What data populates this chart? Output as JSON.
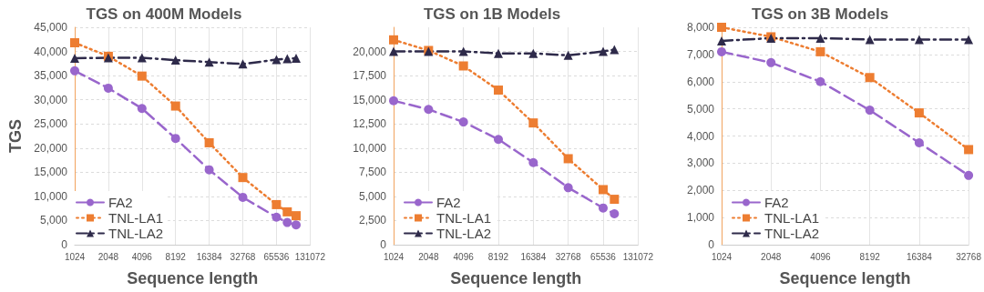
{
  "chart_data": [
    {
      "type": "line",
      "title": "TGS on 400M Models",
      "xlabel": "Sequence length",
      "ylabel": "TGS",
      "log": "x",
      "x": [
        1024,
        2048,
        4096,
        8192,
        16384,
        32768,
        65536,
        81920,
        98304
      ],
      "xlim": [
        1024,
        131072
      ],
      "xticks": [
        1024,
        2048,
        4096,
        8192,
        16384,
        32768,
        65536,
        131072
      ],
      "ylim": [
        0,
        45000
      ],
      "yticks": [
        {
          "value": 0,
          "label": "0"
        },
        {
          "value": 5000,
          "label": "5,000"
        },
        {
          "value": 10000,
          "label": "10,000"
        },
        {
          "value": 15000,
          "label": "15,000"
        },
        {
          "value": 20000,
          "label": "20,000"
        },
        {
          "value": 25000,
          "label": "25,000"
        },
        {
          "value": 30000,
          "label": "30,000"
        },
        {
          "value": 35000,
          "label": "35,000"
        },
        {
          "value": 40000,
          "label": "40,000"
        },
        {
          "value": 45000,
          "label": "45,000"
        }
      ],
      "grid": true,
      "legend": "bottom left",
      "series": [
        {
          "name": "FA2",
          "color": "#9966cc",
          "marker": "circle",
          "line_style": "dashed",
          "values": [
            36000,
            32400,
            28200,
            22000,
            15500,
            9800,
            5700,
            4600,
            4100
          ]
        },
        {
          "name": "TNL-LA1",
          "color": "#ed7d31",
          "marker": "square",
          "line_style": "dotted",
          "values": [
            41800,
            39000,
            34900,
            28700,
            21100,
            13900,
            8300,
            6800,
            6000
          ]
        },
        {
          "name": "TNL-LA2",
          "color": "#2e2a4a",
          "marker": "triangle",
          "line_style": "dashdot",
          "values": [
            38600,
            38700,
            38700,
            38200,
            37800,
            37400,
            38300,
            38500,
            38600
          ]
        }
      ]
    },
    {
      "type": "line",
      "title": "TGS on 1B Models",
      "xlabel": "Sequence length",
      "log": "x",
      "x": [
        1024,
        2048,
        4096,
        8192,
        16384,
        32768,
        65536,
        81920
      ],
      "xlim": [
        1024,
        131072
      ],
      "xticks": [
        1024,
        2048,
        4096,
        8192,
        16384,
        32768,
        65536,
        131072
      ],
      "ylim": [
        0,
        22500
      ],
      "yticks": [
        {
          "value": 0,
          "label": "0"
        },
        {
          "value": 2500,
          "label": "2,500"
        },
        {
          "value": 5000,
          "label": "5,000"
        },
        {
          "value": 7500,
          "label": "7,500"
        },
        {
          "value": 10000,
          "label": "10,000"
        },
        {
          "value": 12500,
          "label": "12,500"
        },
        {
          "value": 15000,
          "label": "15,000"
        },
        {
          "value": 17500,
          "label": "17,500"
        },
        {
          "value": 20000,
          "label": "20,000"
        }
      ],
      "grid": true,
      "legend": "bottom left",
      "series": [
        {
          "name": "FA2",
          "color": "#9966cc",
          "marker": "circle",
          "line_style": "dashed",
          "values": [
            14900,
            14000,
            12700,
            10900,
            8500,
            5900,
            3800,
            3200
          ]
        },
        {
          "name": "TNL-LA1",
          "color": "#ed7d31",
          "marker": "square",
          "line_style": "dotted",
          "values": [
            21200,
            20100,
            18500,
            16000,
            12600,
            8900,
            5700,
            4700
          ]
        },
        {
          "name": "TNL-LA2",
          "color": "#2e2a4a",
          "marker": "triangle",
          "line_style": "dashdot",
          "values": [
            20000,
            20000,
            20000,
            19800,
            19800,
            19600,
            20000,
            20200
          ]
        }
      ]
    },
    {
      "type": "line",
      "title": "TGS on 3B Models",
      "xlabel": "Sequence length",
      "log": "x",
      "x": [
        1024,
        2048,
        4096,
        8192,
        16384,
        32768
      ],
      "xlim": [
        1024,
        32768
      ],
      "xticks": [
        1024,
        2048,
        4096,
        8192,
        16384,
        32768
      ],
      "ylim": [
        0,
        8000
      ],
      "yticks": [
        {
          "value": 0,
          "label": "0"
        },
        {
          "value": 1000,
          "label": "1,000"
        },
        {
          "value": 2000,
          "label": "2,000"
        },
        {
          "value": 3000,
          "label": "3,000"
        },
        {
          "value": 4000,
          "label": "4,000"
        },
        {
          "value": 5000,
          "label": "5,000"
        },
        {
          "value": 6000,
          "label": "6,000"
        },
        {
          "value": 7000,
          "label": "7,000"
        },
        {
          "value": 8000,
          "label": "8,000"
        }
      ],
      "grid": true,
      "legend": "bottom left",
      "series": [
        {
          "name": "FA2",
          "color": "#9966cc",
          "marker": "circle",
          "line_style": "dashed",
          "values": [
            7100,
            6700,
            6000,
            4950,
            3750,
            2550
          ]
        },
        {
          "name": "TNL-LA1",
          "color": "#ed7d31",
          "marker": "square",
          "line_style": "dotted",
          "values": [
            8000,
            7650,
            7100,
            6150,
            4850,
            3500
          ]
        },
        {
          "name": "TNL-LA2",
          "color": "#2e2a4a",
          "marker": "triangle",
          "line_style": "dashdot",
          "values": [
            7500,
            7600,
            7600,
            7550,
            7550,
            7550
          ]
        }
      ]
    }
  ]
}
